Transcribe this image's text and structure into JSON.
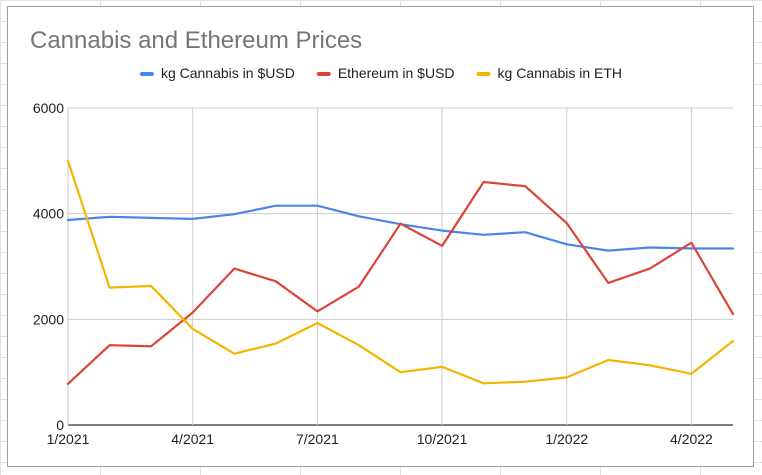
{
  "chart_data": {
    "type": "line",
    "title": "Cannabis and Ethereum Prices",
    "xlabel": "",
    "ylabel": "",
    "ylim": [
      0,
      6000
    ],
    "y_ticks": [
      "0",
      "2000",
      "4000",
      "6000"
    ],
    "x_tick_labels": [
      {
        "label": "1/2021",
        "index": 0
      },
      {
        "label": "4/2021",
        "index": 3
      },
      {
        "label": "7/2021",
        "index": 6
      },
      {
        "label": "10/2021",
        "index": 9
      },
      {
        "label": "1/2022",
        "index": 12
      },
      {
        "label": "4/2022",
        "index": 15
      }
    ],
    "x": [
      "2021-01",
      "2021-02",
      "2021-03",
      "2021-04",
      "2021-05",
      "2021-06",
      "2021-07",
      "2021-08",
      "2021-09",
      "2021-10",
      "2021-11",
      "2021-12",
      "2022-01",
      "2022-02",
      "2022-03",
      "2022-04",
      "2022-05"
    ],
    "grid": true,
    "legend_position": "top",
    "series": [
      {
        "name": "kg Cannabis in $USD",
        "color": "#4a86e8",
        "values": [
          3880,
          3940,
          3920,
          3900,
          3990,
          4150,
          4150,
          3950,
          3800,
          3680,
          3600,
          3650,
          3420,
          3300,
          3360,
          3340,
          3340
        ]
      },
      {
        "name": "Ethereum in $USD",
        "color": "#db4437",
        "values": [
          780,
          1510,
          1490,
          2130,
          2960,
          2720,
          2150,
          2620,
          3810,
          3390,
          4600,
          4520,
          3820,
          2690,
          2960,
          3450,
          2100
        ]
      },
      {
        "name": "kg Cannabis in ETH",
        "color": "#f4b400",
        "values": [
          5000,
          2600,
          2630,
          1820,
          1350,
          1540,
          1930,
          1510,
          1000,
          1100,
          790,
          820,
          900,
          1230,
          1130,
          970,
          1590
        ]
      }
    ]
  }
}
